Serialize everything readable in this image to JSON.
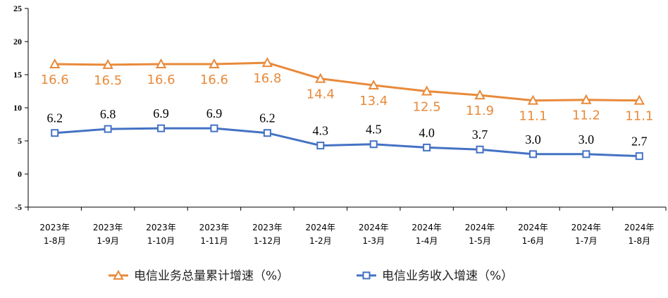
{
  "chart_data": {
    "type": "line",
    "categories": [
      [
        "2023年",
        "1-8月"
      ],
      [
        "2023年",
        "1-9月"
      ],
      [
        "2023年",
        "1-10月"
      ],
      [
        "2023年",
        "1-11月"
      ],
      [
        "2023年",
        "1-12月"
      ],
      [
        "2024年",
        "1-2月"
      ],
      [
        "2024年",
        "1-3月"
      ],
      [
        "2024年",
        "1-4月"
      ],
      [
        "2024年",
        "1-5月"
      ],
      [
        "2024年",
        "1-6月"
      ],
      [
        "2024年",
        "1-7月"
      ],
      [
        "2024年",
        "1-8月"
      ]
    ],
    "series": [
      {
        "name": "电信业务总量累计增速（%）",
        "color": "#E88A3A",
        "marker": "triangle",
        "values": [
          16.6,
          16.5,
          16.6,
          16.6,
          16.8,
          14.4,
          13.4,
          12.5,
          11.9,
          11.1,
          11.2,
          11.1
        ],
        "labels": [
          "16.6",
          "16.5",
          "16.6",
          "16.6",
          "16.8",
          "14.4",
          "13.4",
          "12.5",
          "11.9",
          "11.1",
          "11.2",
          "11.1"
        ]
      },
      {
        "name": "电信业务收入增速（%）",
        "color": "#4472C4",
        "marker": "square",
        "values": [
          6.2,
          6.8,
          6.9,
          6.9,
          6.2,
          4.3,
          4.5,
          4.0,
          3.7,
          3.0,
          3.0,
          2.7
        ],
        "labels": [
          "6.2",
          "6.8",
          "6.9",
          "6.9",
          "6.2",
          "4.3",
          "4.5",
          "4.0",
          "3.7",
          "3.0",
          "3.0",
          "2.7"
        ]
      }
    ],
    "ylim": [
      -5,
      25
    ],
    "yticks": [
      "-5",
      "0",
      "5",
      "10",
      "15",
      "20",
      "25"
    ],
    "title": "",
    "xlabel": "",
    "ylabel": "",
    "grid": false,
    "legend_position": "bottom"
  }
}
